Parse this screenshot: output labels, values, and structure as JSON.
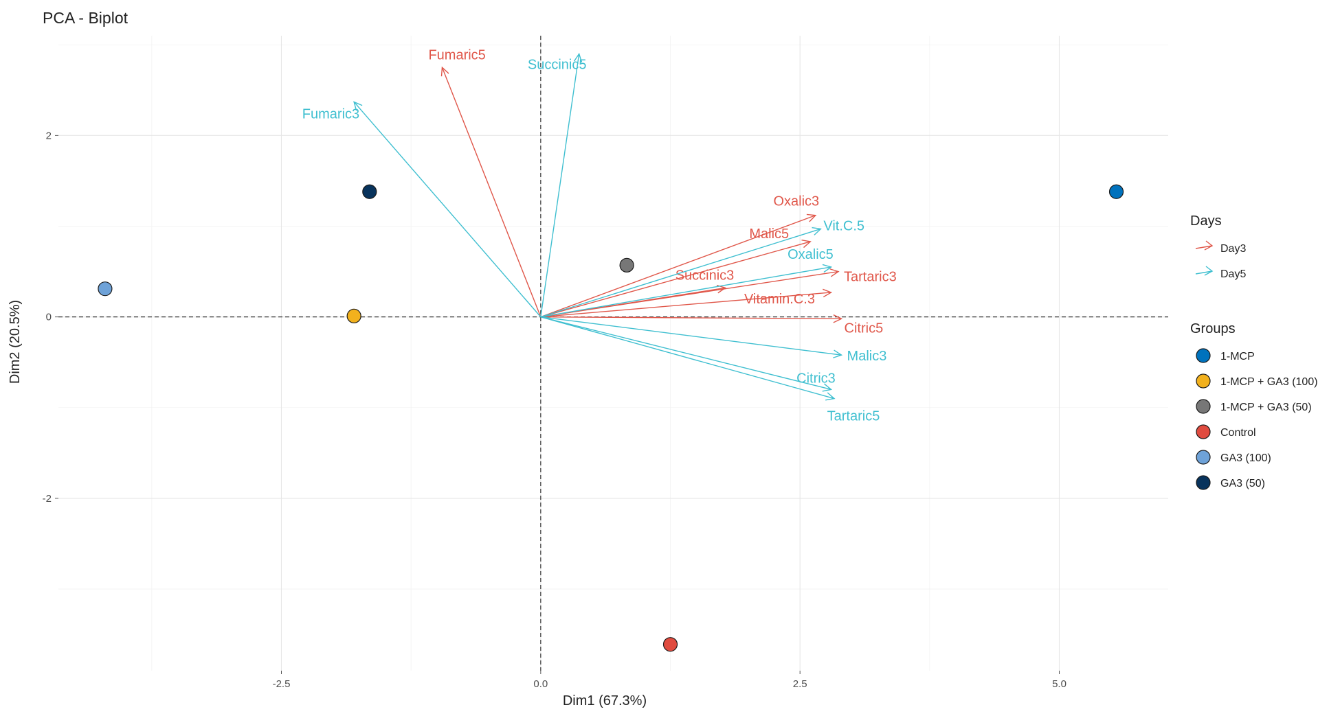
{
  "chart_data": {
    "type": "scatter",
    "title": "PCA - Biplot",
    "xlabel": "Dim1 (67.3%)",
    "ylabel": "Dim2 (20.5%)",
    "xlim": [
      -4.65,
      6.05
    ],
    "ylim": [
      -3.9,
      3.1
    ],
    "xticks": [
      -2.5,
      0.0,
      2.5,
      5.0
    ],
    "xtick_labels": [
      "-2.5",
      "0.0",
      "2.5",
      "5.0"
    ],
    "yticks": [
      -2,
      0,
      2
    ],
    "ytick_labels": [
      "-2",
      "0",
      "2"
    ],
    "grid": true,
    "legend_days": {
      "title": "Days",
      "entries": [
        {
          "name": "Day3",
          "color": "#e0574a"
        },
        {
          "name": "Day5",
          "color": "#3fbfd0"
        }
      ]
    },
    "legend_groups": {
      "title": "Groups",
      "entries": [
        {
          "name": "1-MCP",
          "color": "#0072bd"
        },
        {
          "name": "1-MCP + GA3 (100)",
          "color": "#f2b11d"
        },
        {
          "name": "1-MCP + GA3 (50)",
          "color": "#777777"
        },
        {
          "name": "Control",
          "color": "#e04b3f"
        },
        {
          "name": "GA3 (100)",
          "color": "#6ea2d8"
        },
        {
          "name": "GA3 (50)",
          "color": "#08335c"
        }
      ]
    },
    "points": [
      {
        "group": "1-MCP",
        "x": 5.55,
        "y": 1.38
      },
      {
        "group": "1-MCP + GA3 (100)",
        "x": -1.8,
        "y": 0.01
      },
      {
        "group": "1-MCP + GA3 (50)",
        "x": 0.83,
        "y": 0.57
      },
      {
        "group": "Control",
        "x": 1.25,
        "y": -3.61
      },
      {
        "group": "GA3 (100)",
        "x": -4.2,
        "y": 0.31
      },
      {
        "group": "GA3 (50)",
        "x": -1.65,
        "y": 1.38
      }
    ],
    "vectors": [
      {
        "name": "Fumaric5",
        "day": "Day3",
        "x": -0.95,
        "y": 2.75
      },
      {
        "name": "Oxalic3",
        "day": "Day3",
        "x": 2.65,
        "y": 1.12
      },
      {
        "name": "Malic5",
        "day": "Day3",
        "x": 2.6,
        "y": 0.83
      },
      {
        "name": "Succinic3",
        "day": "Day3",
        "x": 1.78,
        "y": 0.32
      },
      {
        "name": "Tartaric3",
        "day": "Day3",
        "x": 2.87,
        "y": 0.5
      },
      {
        "name": "Vitamin.C.3",
        "day": "Day3",
        "x": 2.8,
        "y": 0.27
      },
      {
        "name": "Citric5",
        "day": "Day3",
        "x": 2.9,
        "y": -0.02
      },
      {
        "name": "Succinic5",
        "day": "Day5",
        "x": 0.37,
        "y": 2.9
      },
      {
        "name": "Fumaric3",
        "day": "Day5",
        "x": -1.8,
        "y": 2.37
      },
      {
        "name": "Vit.C.5",
        "day": "Day5",
        "x": 2.7,
        "y": 0.97
      },
      {
        "name": "Oxalic5",
        "day": "Day5",
        "x": 2.8,
        "y": 0.55
      },
      {
        "name": "Malic3",
        "day": "Day5",
        "x": 2.9,
        "y": -0.42
      },
      {
        "name": "Citric3",
        "day": "Day5",
        "x": 2.8,
        "y": -0.8
      },
      {
        "name": "Tartaric5",
        "day": "Day5",
        "x": 2.83,
        "y": -0.9
      }
    ]
  }
}
